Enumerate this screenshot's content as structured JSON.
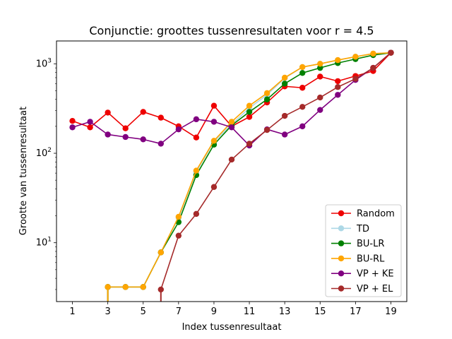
{
  "chart_data": {
    "type": "line",
    "title": "Conjunctie: groottes tussenresultaten voor r = 4.5",
    "xlabel": "Index tussenresultaat",
    "ylabel": "Grootte van tussenresultaat",
    "yscale": "log",
    "xlim": [
      0.1,
      19.9
    ],
    "ylim": [
      2.2,
      1800
    ],
    "xticks": [
      1,
      3,
      5,
      7,
      9,
      11,
      13,
      15,
      17,
      19
    ],
    "yticks": [
      {
        "value": 10,
        "base": "10",
        "exp": "1"
      },
      {
        "value": 100,
        "base": "10",
        "exp": "2"
      },
      {
        "value": 1000,
        "base": "10",
        "exp": "3"
      }
    ],
    "legend_position": "lower right",
    "series": [
      {
        "name": "Random",
        "color": "#ee0000",
        "x": [
          1,
          2,
          3,
          4,
          5,
          6,
          7,
          8,
          9,
          10,
          11,
          12,
          13,
          14,
          15,
          16,
          17,
          18,
          19
        ],
        "y": [
          230,
          195,
          285,
          190,
          290,
          250,
          200,
          150,
          340,
          200,
          255,
          370,
          560,
          540,
          720,
          640,
          730,
          830,
          1330
        ]
      },
      {
        "name": "TD",
        "color": "#add8e6",
        "x": [
          1,
          2,
          3,
          4,
          5,
          6,
          7,
          8,
          9,
          10,
          11,
          12,
          13,
          14,
          15,
          16,
          17,
          18,
          19
        ],
        "y": [
          null,
          null,
          3.2,
          3.2,
          3.2,
          7.8,
          19,
          62,
          135,
          210,
          320,
          450,
          690,
          920,
          1000,
          1100,
          1200,
          1300,
          1330
        ]
      },
      {
        "name": "BU-LR",
        "color": "#008000",
        "x": [
          1,
          2,
          3,
          4,
          5,
          6,
          7,
          8,
          9,
          10,
          11,
          12,
          13,
          14,
          15,
          16,
          17,
          18,
          19
        ],
        "y": [
          null,
          null,
          3.2,
          3.2,
          3.2,
          7.8,
          17,
          57,
          125,
          205,
          290,
          400,
          600,
          790,
          900,
          1020,
          1130,
          1250,
          1330
        ]
      },
      {
        "name": "BU-RL",
        "color": "#ffa500",
        "x": [
          1,
          2,
          3,
          4,
          5,
          6,
          7,
          8,
          9,
          10,
          11,
          12,
          13,
          14,
          15,
          16,
          17,
          18,
          19
        ],
        "y": [
          null,
          null,
          3.2,
          3.2,
          3.2,
          7.8,
          19.5,
          64,
          138,
          225,
          340,
          470,
          700,
          920,
          1000,
          1100,
          1200,
          1300,
          1330
        ]
      },
      {
        "name": "VP + KE",
        "color": "#800080",
        "x": [
          1,
          2,
          3,
          4,
          5,
          6,
          7,
          8,
          9,
          10,
          11,
          12,
          13,
          14,
          15,
          16,
          17,
          18,
          19
        ],
        "y": [
          195,
          225,
          162,
          152,
          143,
          128,
          185,
          240,
          225,
          195,
          122,
          185,
          162,
          200,
          305,
          450,
          660,
          900,
          1330
        ]
      },
      {
        "name": "VP + EL",
        "color": "#a52a2a",
        "x": [
          1,
          2,
          3,
          4,
          5,
          6,
          7,
          8,
          9,
          10,
          11,
          12,
          13,
          14,
          15,
          16,
          17,
          18,
          19
        ],
        "y": [
          null,
          null,
          null,
          null,
          null,
          3.0,
          12,
          21,
          42,
          85,
          128,
          182,
          262,
          330,
          420,
          550,
          680,
          900,
          1330
        ]
      }
    ]
  }
}
